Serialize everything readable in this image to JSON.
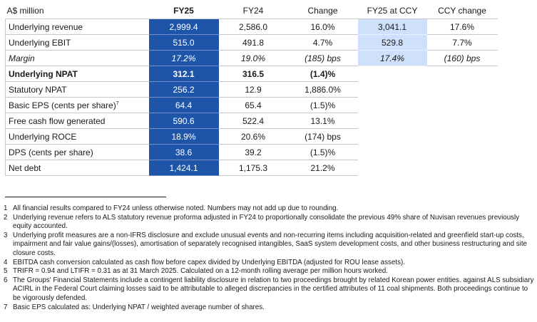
{
  "table": {
    "headers": [
      "A$ million",
      "FY25",
      "FY24",
      "Change",
      "FY25 at CCY",
      "CCY change"
    ],
    "rows": [
      {
        "label": "Underlying revenue",
        "fy25": "2,999.4",
        "fy24": "2,586.0",
        "change": "16.0%",
        "ccy": "3,041.1",
        "ccy_change": "17.6%"
      },
      {
        "label": "Underlying EBIT",
        "fy25": "515.0",
        "fy24": "491.8",
        "change": "4.7%",
        "ccy": "529.8",
        "ccy_change": "7.7%"
      },
      {
        "label": "Margin",
        "fy25": "17.2%",
        "fy24": "19.0%",
        "change": "(185) bps",
        "ccy": "17.4%",
        "ccy_change": "(160) bps"
      },
      {
        "label": "Underlying NPAT",
        "fy25": "312.1",
        "fy24": "316.5",
        "change": "(1.4)%",
        "ccy": "",
        "ccy_change": ""
      },
      {
        "label": "Statutory NPAT",
        "fy25": "256.2",
        "fy24": "12.9",
        "change": "1,886.0%",
        "ccy": "",
        "ccy_change": ""
      },
      {
        "label": "Basic EPS (cents per share)",
        "label_sup": "7",
        "fy25": "64.4",
        "fy24": "65.4",
        "change": "(1.5)%",
        "ccy": "",
        "ccy_change": ""
      },
      {
        "label": "Free cash flow generated",
        "fy25": "590.6",
        "fy24": "522.4",
        "change": "13.1%",
        "ccy": "",
        "ccy_change": ""
      },
      {
        "label": "Underlying ROCE",
        "fy25": "18.9%",
        "fy24": "20.6%",
        "change": "(174) bps",
        "ccy": "",
        "ccy_change": ""
      },
      {
        "label": "DPS (cents per share)",
        "fy25": "38.6",
        "fy24": "39.2",
        "change": "(1.5)%",
        "ccy": "",
        "ccy_change": ""
      },
      {
        "label": "Net debt",
        "fy25": "1,424.1",
        "fy24": "1,175.3",
        "change": "21.2%",
        "ccy": "",
        "ccy_change": ""
      }
    ]
  },
  "footnotes": [
    {
      "num": "1",
      "text": "All financial results compared to FY24 unless otherwise noted. Numbers may not add up due to rounding."
    },
    {
      "num": "2",
      "text": "Underlying revenue refers to ALS statutory revenue proforma adjusted in FY24 to proportionally consolidate the previous 49% share of Nuvisan revenues previously equity accounted."
    },
    {
      "num": "3",
      "text": "Underlying profit measures are a non-IFRS disclosure and exclude unusual events and non-recurring items including acquisition-related and greenfield start-up costs, impairment and fair value gains/(losses), amortisation of separately recognised intangibles, SaaS system development costs, and other business restructuring and site closure costs."
    },
    {
      "num": "4",
      "text": "EBITDA cash conversion calculated as cash flow before capex divided by Underlying EBITDA (adjusted for ROU lease assets)."
    },
    {
      "num": "5",
      "text": "TRIFR = 0.94 and LTIFR = 0.31 as at 31 March 2025. Calculated on a 12-month rolling average per million hours worked."
    },
    {
      "num": "6",
      "text": "The Groups' Financial Statements include a contingent liability disclosure in relation to two proceedings brought by related Korean power entities. against ALS subsidiary ACIRL in the Federal Court claiming losses said to be attributable to alleged discrepancies in the certified attributes of 11 coal shipments. Both proceedings continue to be vigorously defended."
    },
    {
      "num": "7",
      "text": "Basic EPS calculated as: Underlying NPAT / weighted average number of shares."
    }
  ]
}
